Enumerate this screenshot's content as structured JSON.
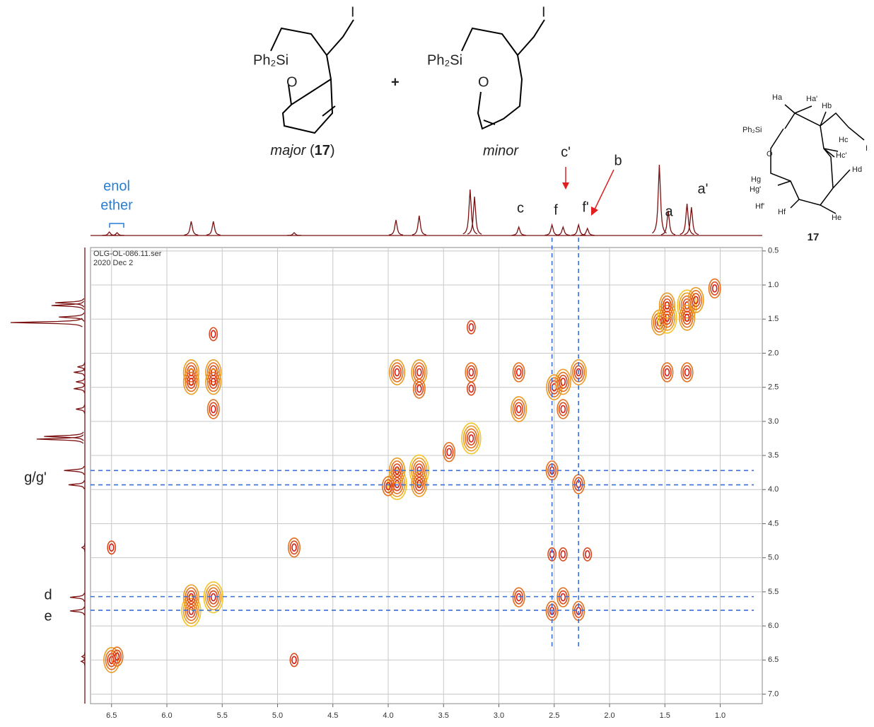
{
  "structures": {
    "major": {
      "silyl": "Ph₂Si",
      "oxygen": "O",
      "iodine": "I",
      "caption": [
        "major",
        " (",
        "17",
        ")"
      ]
    },
    "plus": "+",
    "minor": {
      "silyl": "Ph₂Si",
      "oxygen": "O",
      "iodine": "I",
      "caption": "minor"
    },
    "compound": {
      "labels": [
        "Ha",
        "Ha'",
        "Hb",
        "Ph₂Si",
        "O",
        "I",
        "Hc",
        "Hc'",
        "Hd",
        "Hg",
        "Hg'",
        "Hf'",
        "Hf",
        "He"
      ],
      "number": "17"
    }
  },
  "chart_data": {
    "type": "contour",
    "file": "OLG-OL-086.11.ser",
    "date": "2020 Dec 2",
    "xlim": [
      6.69,
      0.62
    ],
    "ylim": [
      0.45,
      7.14
    ],
    "xticks": [
      {
        "value": 6.5,
        "label": "6.5"
      },
      {
        "value": 6,
        "label": "6.0"
      },
      {
        "value": 5.5,
        "label": "5.5"
      },
      {
        "value": 5,
        "label": "5.0"
      },
      {
        "value": 4.5,
        "label": "4.5"
      },
      {
        "value": 4,
        "label": "4.0"
      },
      {
        "value": 3.5,
        "label": "3.5"
      },
      {
        "value": 3,
        "label": "3.0"
      },
      {
        "value": 2.5,
        "label": "2.5"
      },
      {
        "value": 2,
        "label": "2.0"
      },
      {
        "value": 1.5,
        "label": "1.5"
      },
      {
        "value": 1,
        "label": "1.0"
      }
    ],
    "yticks": [
      0.5,
      {
        "value": 1,
        "label": "1.0"
      },
      1.5,
      {
        "value": 2,
        "label": "2.0"
      },
      2.5,
      {
        "value": 3,
        "label": "3.0"
      },
      3.5,
      {
        "value": 4,
        "label": "4.0"
      },
      4.5,
      {
        "value": 5,
        "label": "5.0"
      },
      5.5,
      {
        "value": 6,
        "label": "6.0"
      },
      6.5,
      {
        "value": 7,
        "label": "7.0"
      }
    ],
    "grid": true,
    "projection": {
      "x": [
        6.52,
        6.45,
        5.78,
        5.58,
        4.85,
        3.93,
        3.72,
        3.26,
        3.22,
        2.82,
        2.52,
        2.42,
        2.28,
        2.2,
        1.55,
        1.47,
        1.3,
        1.26
      ],
      "values": [
        5,
        4,
        20,
        20,
        4,
        22,
        28,
        65,
        55,
        12,
        15,
        12,
        15,
        10,
        100,
        35,
        45,
        40
      ]
    },
    "peaks": {
      "x": [
        6.5,
        6.45,
        5.78,
        5.58,
        4.85,
        3.92,
        3.72,
        3.25,
        2.82,
        2.5,
        2.42,
        2.28,
        1.55,
        1.48,
        1.3,
        1.22,
        1.05,
        5.78,
        5.78,
        5.58,
        5.58,
        5.58,
        5.58,
        5.78,
        3.92,
        3.72,
        3.72,
        3.92,
        3.72,
        2.82,
        2.82,
        2.52,
        2.42,
        2.28,
        2.52,
        2.28,
        2.42,
        1.48,
        1.3,
        1.48,
        1.3,
        3.25,
        3.25,
        3.25,
        6.5,
        4.85,
        2.52,
        2.42,
        2.2,
        3.45,
        4.0
      ],
      "y": [
        6.5,
        6.45,
        5.78,
        5.58,
        4.85,
        3.92,
        3.72,
        3.25,
        2.82,
        2.5,
        2.42,
        2.28,
        1.55,
        1.48,
        1.3,
        1.22,
        1.05,
        2.28,
        2.42,
        2.28,
        2.42,
        2.82,
        1.72,
        5.58,
        2.28,
        2.28,
        2.52,
        3.72,
        3.92,
        2.28,
        5.58,
        5.78,
        5.58,
        5.78,
        3.72,
        3.92,
        2.82,
        2.28,
        2.28,
        1.3,
        1.48,
        2.28,
        2.52,
        1.62,
        4.85,
        6.5,
        4.95,
        4.95,
        4.95,
        3.45,
        3.95
      ],
      "intensity": [
        4,
        3,
        5,
        5,
        3,
        5,
        5,
        5,
        4,
        4,
        4,
        4,
        4,
        5,
        5,
        4,
        3,
        4,
        4,
        4,
        4,
        3,
        2,
        4,
        4,
        4,
        3,
        4,
        4,
        3,
        3,
        3,
        3,
        3,
        3,
        3,
        3,
        3,
        3,
        4,
        4,
        3,
        2,
        2,
        2,
        2,
        2,
        2,
        2,
        3,
        3
      ]
    },
    "guides": {
      "x": [
        2.52,
        2.28
      ],
      "y": [
        3.72,
        3.93,
        5.57,
        5.77
      ]
    },
    "annotations": [
      "enol",
      "ether",
      "c",
      "f",
      "c'",
      "f'",
      "b",
      "a",
      "a'",
      "g/g'",
      "d",
      "e"
    ]
  }
}
